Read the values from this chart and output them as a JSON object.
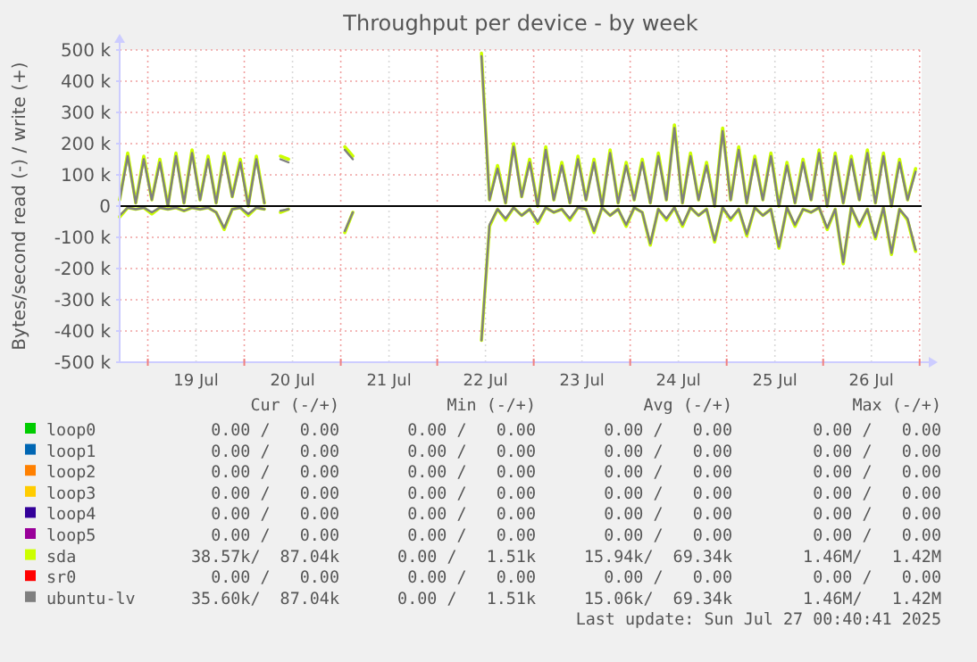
{
  "chart_data": {
    "type": "line",
    "title": "Throughput per device - by week",
    "ylabel": "Bytes/second read (-) / write (+)",
    "x": [
      "2025-07-18T17:00",
      "2025-07-18T19:00",
      "2025-07-18T21:00",
      "2025-07-18T23:00",
      "2025-07-19T01:00",
      "2025-07-19T03:00",
      "2025-07-19T05:00",
      "2025-07-19T07:00",
      "2025-07-19T09:00",
      "2025-07-19T11:00",
      "2025-07-19T13:00",
      "2025-07-19T15:00",
      "2025-07-19T17:00",
      "2025-07-19T19:00",
      "2025-07-19T21:00",
      "2025-07-19T23:00",
      "2025-07-20T01:00",
      "2025-07-20T03:00",
      "2025-07-20T05:00",
      "2025-07-20T07:00",
      "2025-07-20T09:00",
      "2025-07-20T11:00",
      "2025-07-20T13:00",
      "2025-07-20T15:00",
      "2025-07-20T17:00",
      "2025-07-20T19:00",
      "2025-07-20T21:00",
      "2025-07-20T23:00",
      "2025-07-21T01:00",
      "2025-07-21T03:00",
      "2025-07-21T05:00",
      "2025-07-21T07:00",
      "2025-07-21T09:00",
      "2025-07-21T11:00",
      "2025-07-21T13:00",
      "2025-07-21T15:00",
      "2025-07-21T17:00",
      "2025-07-21T19:00",
      "2025-07-21T21:00",
      "2025-07-21T23:00",
      "2025-07-22T01:00",
      "2025-07-22T03:00",
      "2025-07-22T05:00",
      "2025-07-22T07:00",
      "2025-07-22T09:00",
      "2025-07-22T11:00",
      "2025-07-22T13:00",
      "2025-07-22T15:00",
      "2025-07-22T17:00",
      "2025-07-22T19:00",
      "2025-07-22T21:00",
      "2025-07-22T23:00",
      "2025-07-23T01:00",
      "2025-07-23T03:00",
      "2025-07-23T05:00",
      "2025-07-23T07:00",
      "2025-07-23T09:00",
      "2025-07-23T11:00",
      "2025-07-23T13:00",
      "2025-07-23T15:00",
      "2025-07-23T17:00",
      "2025-07-23T19:00",
      "2025-07-23T21:00",
      "2025-07-23T23:00",
      "2025-07-24T01:00",
      "2025-07-24T03:00",
      "2025-07-24T05:00",
      "2025-07-24T07:00",
      "2025-07-24T09:00",
      "2025-07-24T11:00",
      "2025-07-24T13:00",
      "2025-07-24T15:00",
      "2025-07-24T17:00",
      "2025-07-24T19:00",
      "2025-07-24T21:00",
      "2025-07-24T23:00",
      "2025-07-25T01:00",
      "2025-07-25T03:00",
      "2025-07-25T05:00",
      "2025-07-25T07:00",
      "2025-07-25T09:00",
      "2025-07-25T11:00",
      "2025-07-25T13:00",
      "2025-07-25T15:00",
      "2025-07-25T17:00",
      "2025-07-25T19:00",
      "2025-07-25T21:00",
      "2025-07-25T23:00",
      "2025-07-26T01:00",
      "2025-07-26T03:00",
      "2025-07-26T05:00",
      "2025-07-26T07:00",
      "2025-07-26T09:00",
      "2025-07-26T11:00",
      "2025-07-26T13:00",
      "2025-07-26T15:00",
      "2025-07-26T17:00",
      "2025-07-26T19:00",
      "2025-07-26T21:00",
      "2025-07-26T23:00"
    ],
    "series": [
      {
        "name": "loop0",
        "color": "#00cc00",
        "values": [
          null,
          null,
          null,
          null,
          null,
          null,
          null,
          null,
          null,
          null,
          null,
          null,
          null,
          null,
          null,
          null,
          null,
          null,
          null,
          null,
          null,
          null,
          null,
          null,
          null,
          null,
          null,
          null,
          null,
          null,
          null,
          null,
          null,
          null,
          null,
          null,
          null,
          null,
          null,
          null,
          null,
          null,
          null,
          null,
          null,
          null,
          null,
          null,
          null,
          null,
          null,
          null,
          null,
          null,
          null,
          null,
          null,
          null,
          null,
          null,
          null,
          null,
          null,
          null,
          null,
          null,
          null,
          null,
          null,
          null,
          null,
          null,
          null,
          null,
          null,
          null,
          null,
          null,
          null,
          null,
          null,
          null,
          null,
          null,
          null,
          null,
          null,
          null,
          null,
          null,
          null,
          null,
          null,
          null,
          null,
          null,
          null,
          null,
          null,
          null
        ]
      },
      {
        "name": "loop1",
        "color": "#0066b3",
        "values": [
          null,
          null,
          null,
          null,
          null,
          null,
          null,
          null,
          null,
          null,
          null,
          null,
          null,
          null,
          null,
          null,
          null,
          null,
          null,
          null,
          null,
          null,
          null,
          null,
          null,
          null,
          null,
          null,
          null,
          null,
          null,
          null,
          null,
          null,
          null,
          null,
          null,
          null,
          null,
          null,
          null,
          null,
          null,
          null,
          null,
          null,
          null,
          null,
          null,
          null,
          null,
          null,
          null,
          null,
          null,
          null,
          null,
          null,
          null,
          null,
          null,
          null,
          null,
          null,
          null,
          null,
          null,
          null,
          null,
          null,
          null,
          null,
          null,
          null,
          null,
          null,
          null,
          null,
          null,
          null,
          null,
          null,
          null,
          null,
          null,
          null,
          null,
          null,
          null,
          null,
          null,
          null,
          null,
          null,
          null,
          null,
          null,
          null,
          null,
          null
        ]
      },
      {
        "name": "loop2",
        "color": "#ff8000",
        "values": [
          null,
          null,
          null,
          null,
          null,
          null,
          null,
          null,
          null,
          null,
          null,
          null,
          null,
          null,
          null,
          null,
          null,
          null,
          null,
          null,
          null,
          null,
          null,
          null,
          null,
          null,
          null,
          null,
          null,
          null,
          null,
          null,
          null,
          null,
          null,
          null,
          null,
          null,
          null,
          null,
          null,
          null,
          null,
          null,
          null,
          null,
          null,
          null,
          null,
          null,
          null,
          null,
          null,
          null,
          null,
          null,
          null,
          null,
          null,
          null,
          null,
          null,
          null,
          null,
          null,
          null,
          null,
          null,
          null,
          null,
          null,
          null,
          null,
          null,
          null,
          null,
          null,
          null,
          null,
          null,
          null,
          null,
          null,
          null,
          null,
          null,
          null,
          null,
          null,
          null,
          null,
          null,
          null,
          null,
          null,
          null,
          null,
          null,
          null,
          null
        ]
      },
      {
        "name": "loop3",
        "color": "#ffcc00",
        "values": [
          null,
          null,
          null,
          null,
          null,
          null,
          null,
          null,
          null,
          null,
          null,
          null,
          null,
          null,
          null,
          null,
          null,
          null,
          null,
          null,
          null,
          null,
          null,
          null,
          null,
          null,
          null,
          null,
          null,
          null,
          null,
          null,
          null,
          null,
          null,
          null,
          null,
          null,
          null,
          null,
          null,
          null,
          null,
          null,
          null,
          null,
          null,
          null,
          null,
          null,
          null,
          null,
          null,
          null,
          null,
          null,
          null,
          null,
          null,
          null,
          null,
          null,
          null,
          null,
          null,
          null,
          null,
          null,
          null,
          null,
          null,
          null,
          null,
          null,
          null,
          null,
          null,
          null,
          null,
          null,
          null,
          null,
          null,
          null,
          null,
          null,
          null,
          null,
          null,
          null,
          null,
          null,
          null,
          null,
          null,
          null,
          null,
          null,
          null,
          null
        ]
      },
      {
        "name": "loop4",
        "color": "#330099",
        "values": [
          null,
          null,
          null,
          null,
          null,
          null,
          null,
          null,
          null,
          null,
          null,
          null,
          null,
          null,
          null,
          null,
          null,
          null,
          null,
          null,
          null,
          null,
          null,
          null,
          null,
          null,
          null,
          null,
          null,
          null,
          null,
          null,
          null,
          null,
          null,
          null,
          null,
          null,
          null,
          null,
          null,
          null,
          null,
          null,
          null,
          null,
          null,
          null,
          null,
          null,
          null,
          null,
          null,
          null,
          null,
          null,
          null,
          null,
          null,
          null,
          null,
          null,
          null,
          null,
          null,
          null,
          null,
          null,
          null,
          null,
          null,
          null,
          null,
          null,
          null,
          null,
          null,
          null,
          null,
          null,
          null,
          null,
          null,
          null,
          null,
          null,
          null,
          null,
          null,
          null,
          null,
          null,
          null,
          null,
          null,
          null,
          null,
          null,
          null,
          null
        ]
      },
      {
        "name": "loop5",
        "color": "#990099",
        "values": [
          null,
          null,
          null,
          null,
          null,
          null,
          null,
          null,
          null,
          null,
          null,
          null,
          null,
          null,
          null,
          null,
          null,
          null,
          null,
          null,
          null,
          null,
          null,
          null,
          null,
          null,
          null,
          null,
          null,
          null,
          null,
          null,
          null,
          null,
          null,
          null,
          null,
          null,
          null,
          null,
          null,
          null,
          null,
          null,
          null,
          null,
          null,
          null,
          null,
          null,
          null,
          null,
          null,
          null,
          null,
          null,
          null,
          null,
          null,
          null,
          null,
          null,
          null,
          null,
          null,
          null,
          null,
          null,
          null,
          null,
          null,
          null,
          null,
          null,
          null,
          null,
          null,
          null,
          null,
          null,
          null,
          null,
          null,
          null,
          null,
          null,
          null,
          null,
          null,
          null,
          null,
          null,
          null,
          null,
          null,
          null,
          null,
          null,
          null,
          null
        ]
      },
      {
        "name": "sda",
        "color": "#ccff00",
        "values": [
          20000,
          170000,
          10000,
          160000,
          20000,
          150000,
          0,
          170000,
          10000,
          180000,
          20000,
          160000,
          10000,
          170000,
          30000,
          150000,
          0,
          160000,
          10000,
          null,
          160000,
          150000,
          null,
          null,
          null,
          null,
          null,
          null,
          190000,
          160000,
          null,
          null,
          null,
          null,
          null,
          null,
          null,
          null,
          null,
          null,
          null,
          null,
          null,
          null,
          null,
          490000,
          20000,
          130000,
          10000,
          200000,
          30000,
          150000,
          0,
          190000,
          20000,
          140000,
          10000,
          160000,
          20000,
          150000,
          0,
          180000,
          10000,
          140000,
          20000,
          150000,
          10000,
          170000,
          20000,
          260000,
          10000,
          170000,
          20000,
          140000,
          0,
          250000,
          20000,
          190000,
          10000,
          160000,
          20000,
          170000,
          0,
          140000,
          10000,
          150000,
          20000,
          180000,
          0,
          170000,
          10000,
          160000,
          20000,
          180000,
          10000,
          170000,
          0,
          150000,
          20000,
          120000
        ]
      },
      {
        "color": "#ccff00",
        "values": [
          -35000,
          -5000,
          -10000,
          -5000,
          -25000,
          -5000,
          -10000,
          -5000,
          -15000,
          -5000,
          -10000,
          -5000,
          -20000,
          -75000,
          -10000,
          -5000,
          -30000,
          -5000,
          -10000,
          null,
          -20000,
          -10000,
          null,
          null,
          null,
          null,
          null,
          null,
          -85000,
          -20000,
          null,
          null,
          null,
          null,
          null,
          null,
          null,
          null,
          null,
          null,
          null,
          null,
          null,
          null,
          null,
          -430000,
          -65000,
          -10000,
          -45000,
          -5000,
          -30000,
          -10000,
          -55000,
          -5000,
          -20000,
          -10000,
          -45000,
          -5000,
          -10000,
          -85000,
          -5000,
          -30000,
          -10000,
          -65000,
          -5000,
          -20000,
          -125000,
          -10000,
          -45000,
          -5000,
          -65000,
          -5000,
          -30000,
          -10000,
          -115000,
          -5000,
          -45000,
          -10000,
          -95000,
          -5000,
          -30000,
          -10000,
          -135000,
          -5000,
          -65000,
          -10000,
          -20000,
          -5000,
          -75000,
          -10000,
          -185000,
          -5000,
          -65000,
          -10000,
          -105000,
          -5000,
          -155000,
          -10000,
          -45000,
          -145000
        ]
      },
      {
        "name": "sr0",
        "color": "#ff0000",
        "values": [
          null,
          null,
          null,
          null,
          null,
          null,
          null,
          null,
          null,
          null,
          null,
          null,
          null,
          null,
          null,
          null,
          null,
          null,
          null,
          null,
          null,
          null,
          null,
          null,
          null,
          null,
          null,
          null,
          null,
          null,
          null,
          null,
          null,
          null,
          null,
          null,
          null,
          null,
          null,
          null,
          null,
          null,
          null,
          null,
          null,
          null,
          null,
          null,
          null,
          null,
          null,
          null,
          null,
          null,
          null,
          null,
          null,
          null,
          null,
          null,
          null,
          null,
          null,
          null,
          null,
          null,
          null,
          null,
          null,
          null,
          null,
          null,
          null,
          null,
          null,
          null,
          null,
          null,
          null,
          null,
          null,
          null,
          null,
          null,
          null,
          null,
          null,
          null,
          null,
          null,
          null,
          null,
          null,
          null,
          null,
          null,
          null,
          null,
          null,
          null
        ]
      },
      {
        "name": "ubuntu-lv",
        "color": "#7f7f7f",
        "values": [
          20000,
          160000,
          10000,
          150000,
          20000,
          140000,
          0,
          160000,
          10000,
          170000,
          20000,
          150000,
          10000,
          160000,
          30000,
          140000,
          0,
          150000,
          10000,
          null,
          150000,
          140000,
          null,
          null,
          null,
          null,
          null,
          null,
          180000,
          150000,
          null,
          null,
          null,
          null,
          null,
          null,
          null,
          null,
          null,
          null,
          null,
          null,
          null,
          null,
          null,
          480000,
          20000,
          120000,
          10000,
          190000,
          30000,
          140000,
          0,
          180000,
          20000,
          130000,
          10000,
          150000,
          20000,
          140000,
          0,
          170000,
          10000,
          130000,
          20000,
          140000,
          10000,
          160000,
          20000,
          250000,
          10000,
          160000,
          20000,
          130000,
          0,
          240000,
          20000,
          180000,
          10000,
          150000,
          20000,
          160000,
          0,
          130000,
          10000,
          140000,
          20000,
          170000,
          0,
          160000,
          10000,
          150000,
          20000,
          170000,
          10000,
          160000,
          0,
          140000,
          20000,
          110000
        ]
      },
      {
        "color": "#7f7f7f",
        "values": [
          -30000,
          -5000,
          -10000,
          -5000,
          -20000,
          -5000,
          -10000,
          -5000,
          -15000,
          -5000,
          -10000,
          -5000,
          -20000,
          -70000,
          -10000,
          -5000,
          -25000,
          -5000,
          -10000,
          null,
          -15000,
          -10000,
          null,
          null,
          null,
          null,
          null,
          null,
          -80000,
          -20000,
          null,
          null,
          null,
          null,
          null,
          null,
          null,
          null,
          null,
          null,
          null,
          null,
          null,
          null,
          null,
          -430000,
          -60000,
          -10000,
          -40000,
          -5000,
          -30000,
          -10000,
          -50000,
          -5000,
          -20000,
          -10000,
          -40000,
          -5000,
          -10000,
          -80000,
          -5000,
          -30000,
          -10000,
          -60000,
          -5000,
          -20000,
          -120000,
          -10000,
          -40000,
          -5000,
          -60000,
          -5000,
          -30000,
          -10000,
          -110000,
          -5000,
          -40000,
          -10000,
          -90000,
          -5000,
          -30000,
          -10000,
          -130000,
          -5000,
          -60000,
          -10000,
          -20000,
          -5000,
          -70000,
          -10000,
          -180000,
          -5000,
          -60000,
          -10000,
          -100000,
          -5000,
          -150000,
          -10000,
          -40000,
          -140000
        ]
      }
    ],
    "xlim": [
      "2025-07-18T17:00",
      "2025-07-27T00:30"
    ],
    "xticks": [
      {
        "value": "2025-07-19T00:00",
        "label": null
      },
      {
        "value": "2025-07-19T12:00",
        "label": "19 Jul"
      },
      {
        "value": "2025-07-20T00:00",
        "label": null
      },
      {
        "value": "2025-07-20T12:00",
        "label": "20 Jul"
      },
      {
        "value": "2025-07-21T00:00",
        "label": null
      },
      {
        "value": "2025-07-21T12:00",
        "label": "21 Jul"
      },
      {
        "value": "2025-07-22T00:00",
        "label": null
      },
      {
        "value": "2025-07-22T12:00",
        "label": "22 Jul"
      },
      {
        "value": "2025-07-23T00:00",
        "label": null
      },
      {
        "value": "2025-07-23T12:00",
        "label": "23 Jul"
      },
      {
        "value": "2025-07-24T00:00",
        "label": null
      },
      {
        "value": "2025-07-24T12:00",
        "label": "24 Jul"
      },
      {
        "value": "2025-07-25T00:00",
        "label": null
      },
      {
        "value": "2025-07-25T12:00",
        "label": "25 Jul"
      },
      {
        "value": "2025-07-26T00:00",
        "label": null
      },
      {
        "value": "2025-07-26T12:00",
        "label": "26 Jul"
      },
      {
        "value": "2025-07-27T00:00",
        "label": null
      }
    ],
    "ylim": [
      -500000,
      500000
    ],
    "yticks": [
      {
        "value": -500000,
        "label": "-500 k"
      },
      {
        "value": -400000,
        "label": "-400 k"
      },
      {
        "value": -300000,
        "label": "-300 k"
      },
      {
        "value": -200000,
        "label": "-200 k"
      },
      {
        "value": -100000,
        "label": "-100 k"
      },
      0,
      {
        "value": 100000,
        "label": "100 k"
      },
      {
        "value": 200000,
        "label": "200 k"
      },
      {
        "value": 300000,
        "label": "300 k"
      },
      {
        "value": 400000,
        "label": "400 k"
      },
      {
        "value": 500000,
        "label": "500 k"
      }
    ],
    "ref_lines": [
      {
        "axis": "y",
        "value": 0,
        "color": "#000000"
      }
    ],
    "grid": true,
    "legend": "bottom",
    "marker": "none",
    "line_style": "solid",
    "annotations": [
      "Cur (-/+)",
      "Min (-/+)",
      "Avg (-/+)",
      "Max (-/+)",
      "0.00 /   0.00",
      "0.00 /   0.00",
      "0.00 /   0.00",
      "0.00 /   0.00",
      "0.00 /   0.00",
      "0.00 /   0.00",
      "0.00 /   0.00",
      "0.00 /   0.00",
      "0.00 /   0.00",
      "0.00 /   0.00",
      "0.00 /   0.00",
      "0.00 /   0.00",
      "0.00 /   0.00",
      "0.00 /   0.00",
      "0.00 /   0.00",
      "0.00 /   0.00",
      "0.00 /   0.00",
      "0.00 /   0.00",
      "0.00 /   0.00",
      "0.00 /   0.00",
      "0.00 /   0.00",
      "0.00 /   0.00",
      "0.00 /   0.00",
      "0.00 /   0.00",
      "38.57k/  87.04k",
      "0.00 /   1.51k",
      "15.94k/  69.34k",
      "1.46M/   1.42M",
      "0.00 /   0.00",
      "0.00 /   0.00",
      "0.00 /   0.00",
      "0.00 /   0.00",
      "35.60k/  87.04k",
      "0.00 /   1.51k",
      "15.06k/  69.34k",
      "1.46M/   1.42M",
      "Last update: Sun Jul 27 00:40:41 2025"
    ]
  }
}
